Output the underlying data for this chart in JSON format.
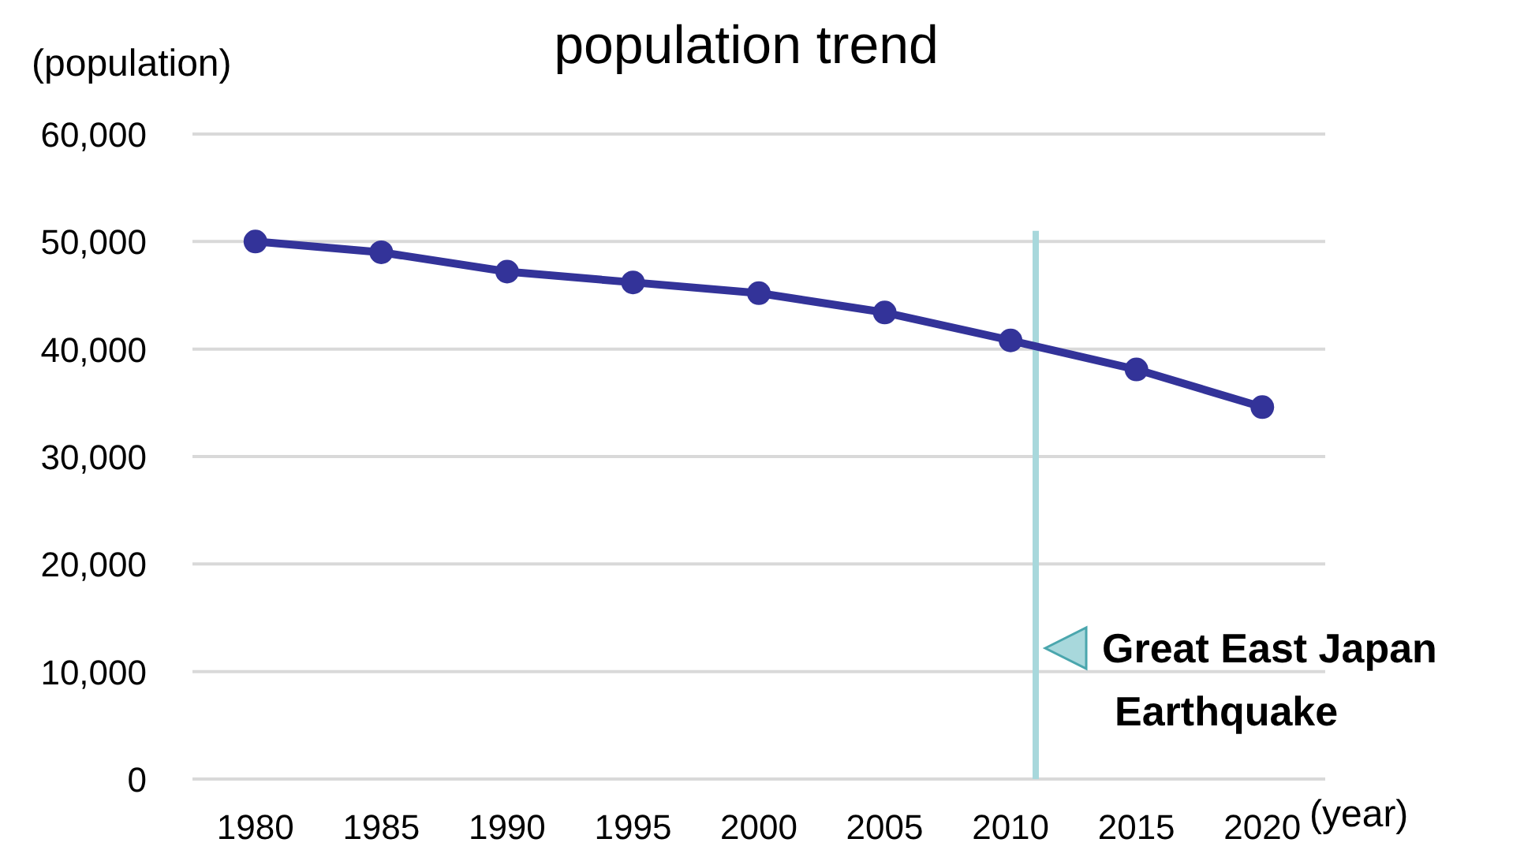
{
  "chart_data": {
    "type": "line",
    "title": "population trend",
    "xlabel": "(year)",
    "ylabel": "(population)",
    "x": [
      1980,
      1985,
      1990,
      1995,
      2000,
      2005,
      2010,
      2015,
      2020
    ],
    "series": [
      {
        "color": "#333399",
        "values": [
          50000,
          49000,
          47200,
          46200,
          45200,
          43400,
          40800,
          38100,
          34600
        ]
      }
    ],
    "xlim": [
      1977.5,
      2022.5
    ],
    "xticks": [
      1980,
      1985,
      1990,
      1995,
      2000,
      2005,
      2010,
      2015,
      2020
    ],
    "ylim": [
      0,
      60000
    ],
    "yticks": [
      {
        "value": 0,
        "label": "0"
      },
      {
        "value": 10000,
        "label": "10,000"
      },
      {
        "value": 20000,
        "label": "20,000"
      },
      {
        "value": 30000,
        "label": "30,000"
      },
      {
        "value": 40000,
        "label": "40,000"
      },
      {
        "value": 50000,
        "label": "50,000"
      },
      {
        "value": 60000,
        "label": "60,000"
      }
    ],
    "grid": "y",
    "marker": "circle",
    "line_style": "solid",
    "ref_lines": [
      {
        "axis": "x",
        "value": 2011,
        "label": "Great East Japan Earthquake",
        "color": "#a8d8dc"
      }
    ]
  }
}
